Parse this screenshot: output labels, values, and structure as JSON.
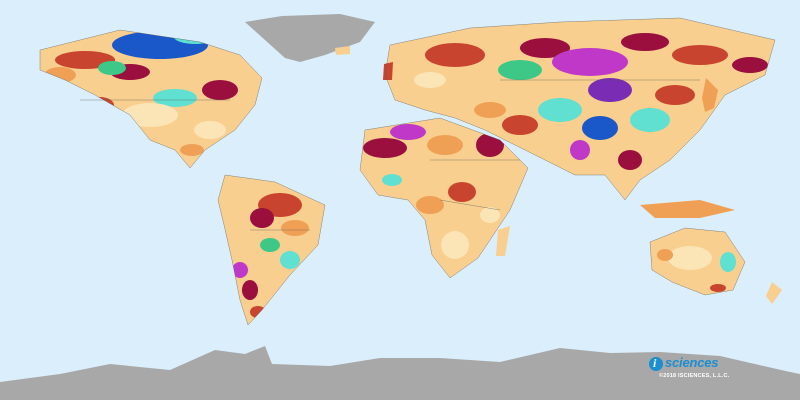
{
  "map": {
    "colors": {
      "ocean": "#dbeefb",
      "ice": "#a8a8a8",
      "land_base": "#f8cf8e",
      "land_light": "#fbe4b5",
      "dry_orange": "#f0a055",
      "dry_red": "#c8442e",
      "dry_maroon": "#9a0f3e",
      "wet_cyan": "#5fe0d0",
      "wet_green": "#3dc887",
      "wet_blue": "#1a57c9",
      "wet_magenta": "#c038c8",
      "wet_purple": "#7a2cb4",
      "border": "#5a5a5a"
    },
    "icons": [
      "isciences-logo-icon"
    ]
  },
  "logo": {
    "brand": "sciences",
    "copyright": "©2018 ISCIENCES, L.L.C."
  }
}
